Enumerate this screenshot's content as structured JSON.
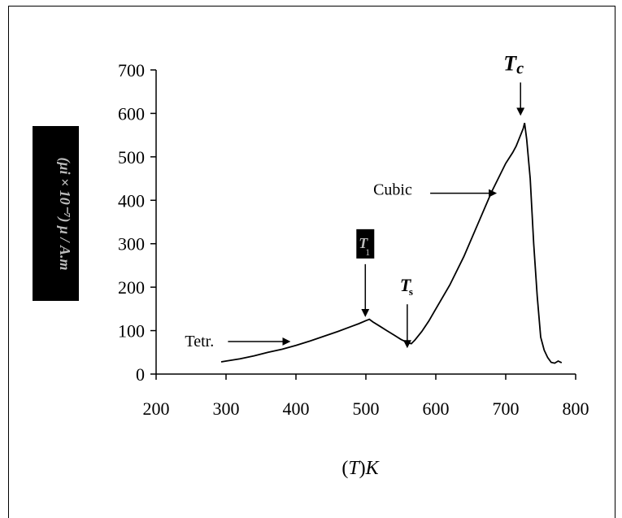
{
  "chart_data": {
    "type": "line",
    "title": "",
    "xlabel_var": "T",
    "xlabel_unit": "K",
    "ylabel": "(μi × 10⁻⁷) μ / A.m",
    "xlim": [
      200,
      800
    ],
    "ylim": [
      0,
      700
    ],
    "xticks": [
      "200",
      "300",
      "400",
      "500",
      "600",
      "700",
      "800"
    ],
    "yticks": [
      "0",
      "100",
      "200",
      "300",
      "400",
      "500",
      "600",
      "700"
    ],
    "grid": false,
    "series": [
      {
        "x": [
          293,
          300,
          320,
          340,
          360,
          380,
          400,
          420,
          440,
          460,
          480,
          490,
          500,
          505,
          510,
          520,
          530,
          540,
          550,
          560,
          565,
          570,
          580,
          590,
          600,
          620,
          640,
          660,
          680,
          700,
          710,
          715,
          720,
          725,
          727,
          730,
          735,
          740,
          745,
          750,
          755,
          760,
          765,
          770,
          775,
          780
        ],
        "y": [
          28,
          30,
          35,
          42,
          50,
          57,
          66,
          76,
          87,
          98,
          110,
          116,
          123,
          126,
          120,
          110,
          100,
          90,
          80,
          72,
          70,
          78,
          98,
          122,
          150,
          205,
          270,
          345,
          420,
          485,
          510,
          525,
          545,
          565,
          578,
          540,
          450,
          300,
          180,
          85,
          55,
          38,
          27,
          25,
          30,
          26
        ]
      }
    ],
    "annotations": [
      {
        "label": "Tetr.",
        "arrow_to_x": 390,
        "arrow_to_y": 60
      },
      {
        "label": "Cubic",
        "arrow_to_x": 685,
        "arrow_to_y": 420
      },
      {
        "label": "T1",
        "arrow_to_x": 505,
        "arrow_to_y": 150
      },
      {
        "label": "Ts",
        "arrow_to_x": 565,
        "arrow_to_y": 82
      },
      {
        "label": "Tc",
        "arrow_to_x": 727,
        "arrow_to_y": 600
      }
    ]
  }
}
